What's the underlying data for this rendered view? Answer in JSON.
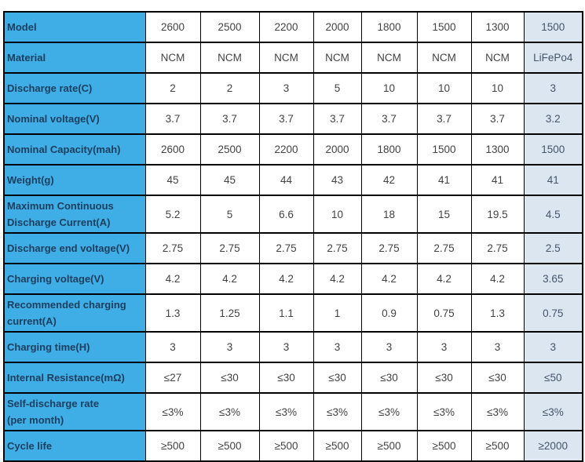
{
  "colors": {
    "label_bg": "#3fade6",
    "highlight_bg": "#dce6f1",
    "border": "#000000",
    "label_text": "#1d3f5e",
    "value_text": "#434343",
    "highlight_text": "#44546a"
  },
  "table": {
    "description": "Battery cell specification comparison table",
    "column_count": 9,
    "highlight_last_column": true,
    "rows": [
      {
        "label": "Model",
        "values": [
          "2600",
          "2500",
          "2200",
          "2000",
          "1800",
          "1500",
          "1300",
          "1500"
        ]
      },
      {
        "label": "Material",
        "values": [
          "NCM",
          "NCM",
          "NCM",
          "NCM",
          "NCM",
          "NCM",
          "NCM",
          "LiFePo4"
        ]
      },
      {
        "label": "Discharge rate(C)",
        "values": [
          "2",
          "2",
          "3",
          "5",
          "10",
          "10",
          "10",
          "3"
        ]
      },
      {
        "label": "Nominal voltage(V)",
        "values": [
          "3.7",
          "3.7",
          "3.7",
          "3.7",
          "3.7",
          "3.7",
          "3.7",
          "3.2"
        ]
      },
      {
        "label": "Nominal Capacity(mah)",
        "values": [
          "2600",
          "2500",
          "2200",
          "2000",
          "1800",
          "1500",
          "1300",
          "1500"
        ]
      },
      {
        "label": "Weight(g)",
        "values": [
          "45",
          "45",
          "44",
          "43",
          "42",
          "41",
          "41",
          "41"
        ]
      },
      {
        "label": "Maximum Continuous\nDischarge Current(A)",
        "values": [
          "5.2",
          "5",
          "6.6",
          "10",
          "18",
          "15",
          "19.5",
          "4.5"
        ]
      },
      {
        "label": "Discharge end voltage(V)",
        "values": [
          "2.75",
          "2.75",
          "2.75",
          "2.75",
          "2.75",
          "2.75",
          "2.75",
          "2.5"
        ]
      },
      {
        "label": "Charging voltage(V)",
        "values": [
          "4.2",
          "4.2",
          "4.2",
          "4.2",
          "4.2",
          "4.2",
          "4.2",
          "3.65"
        ]
      },
      {
        "label": "Recommended charging\ncurrent(A)",
        "values": [
          "1.3",
          "1.25",
          "1.1",
          "1",
          "0.9",
          "0.75",
          "1.3",
          "0.75"
        ]
      },
      {
        "label": "Charging time(H)",
        "values": [
          "3",
          "3",
          "3",
          "3",
          "3",
          "3",
          "3",
          "3"
        ]
      },
      {
        "label": "Internal Resistance(mΩ)",
        "values": [
          "≤27",
          "≤30",
          "≤30",
          "≤30",
          "≤30",
          "≤30",
          "≤30",
          "≤50"
        ]
      },
      {
        "label": "Self-discharge rate\n(per month)",
        "values": [
          "≤3%",
          "≤3%",
          "≤3%",
          "≤3%",
          "≤3%",
          "≤3%",
          "≤3%",
          "≤3%"
        ]
      },
      {
        "label": "Cycle life",
        "values": [
          "≥500",
          "≥500",
          "≥500",
          "≥500",
          "≥500",
          "≥500",
          "≥500",
          "≥2000"
        ]
      }
    ]
  }
}
